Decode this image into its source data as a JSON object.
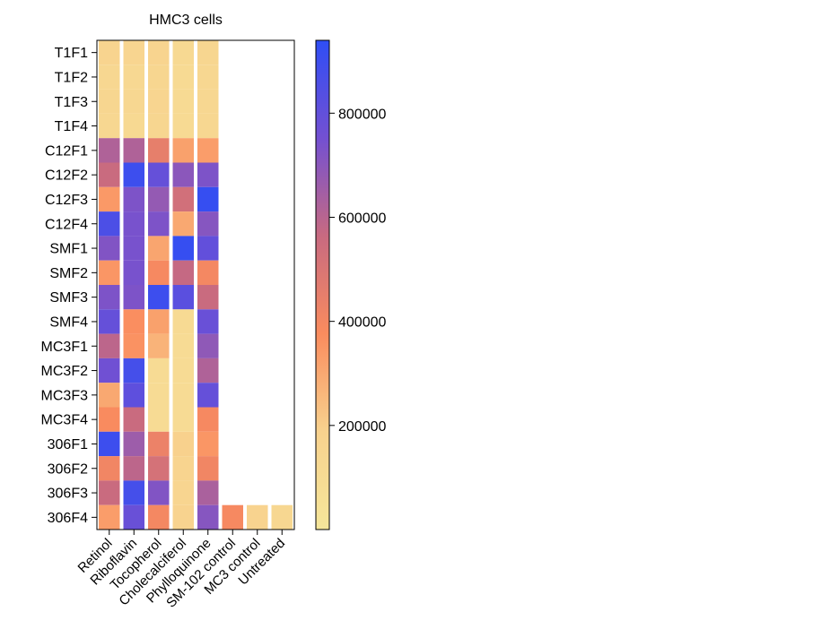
{
  "chart_data": {
    "type": "heatmap",
    "title": "HMC3 cells",
    "rows": [
      "T1F1",
      "T1F2",
      "T1F3",
      "T1F4",
      "C12F1",
      "C12F2",
      "C12F3",
      "C12F4",
      "SMF1",
      "SMF2",
      "SMF3",
      "SMF4",
      "MC3F1",
      "MC3F2",
      "MC3F3",
      "MC3F4",
      "306F1",
      "306F2",
      "306F3",
      "306F4"
    ],
    "columns": [
      "Retinol",
      "Riboflavin",
      "Tocopherol",
      "Cholecalciferol",
      "Phylloquinone",
      "SM-102 control",
      "MC3 control",
      "Untreated"
    ],
    "values": [
      [
        170000,
        160000,
        165000,
        120000,
        150000,
        null,
        null,
        null
      ],
      [
        140000,
        130000,
        150000,
        110000,
        140000,
        null,
        null,
        null
      ],
      [
        150000,
        140000,
        160000,
        110000,
        145000,
        null,
        null,
        null
      ],
      [
        145000,
        120000,
        150000,
        110000,
        140000,
        null,
        null,
        null
      ],
      [
        620000,
        620000,
        450000,
        320000,
        330000,
        null,
        null,
        null
      ],
      [
        560000,
        900000,
        790000,
        700000,
        730000,
        null,
        null,
        null
      ],
      [
        340000,
        730000,
        680000,
        530000,
        920000,
        null,
        null,
        null
      ],
      [
        860000,
        740000,
        730000,
        300000,
        710000,
        null,
        null,
        null
      ],
      [
        720000,
        740000,
        310000,
        920000,
        800000,
        null,
        null,
        null
      ],
      [
        350000,
        740000,
        390000,
        570000,
        400000,
        null,
        null,
        null
      ],
      [
        730000,
        730000,
        900000,
        820000,
        560000,
        null,
        null,
        null
      ],
      [
        790000,
        370000,
        320000,
        110000,
        780000,
        null,
        null,
        null
      ],
      [
        590000,
        360000,
        270000,
        100000,
        690000,
        null,
        null,
        null
      ],
      [
        760000,
        880000,
        100000,
        100000,
        620000,
        null,
        null,
        null
      ],
      [
        300000,
        810000,
        100000,
        100000,
        790000,
        null,
        null,
        null
      ],
      [
        380000,
        560000,
        100000,
        100000,
        390000,
        null,
        null,
        null
      ],
      [
        900000,
        660000,
        430000,
        190000,
        350000,
        null,
        null,
        null
      ],
      [
        410000,
        590000,
        520000,
        170000,
        410000,
        null,
        null,
        null
      ],
      [
        560000,
        880000,
        720000,
        160000,
        630000,
        null,
        null,
        null
      ],
      [
        330000,
        780000,
        400000,
        180000,
        710000,
        390000,
        180000,
        140000
      ]
    ],
    "colorbar": {
      "min": 0,
      "max": 940000,
      "ticks": [
        200000,
        400000,
        600000,
        800000
      ],
      "tick_labels": [
        "200000",
        "400000",
        "600000",
        "800000"
      ],
      "colors": [
        "#f5e69a",
        "#f8d28e",
        "#fa8c5e",
        "#c86a80",
        "#7350d2",
        "#2f4ef5"
      ]
    }
  }
}
